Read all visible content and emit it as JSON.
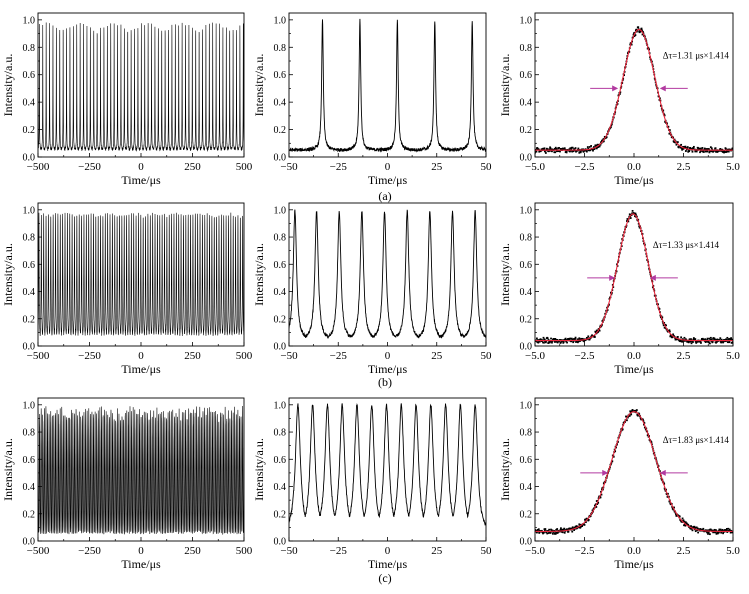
{
  "figure_labels": [
    "(a)",
    "(b)",
    "(c)"
  ],
  "chart_data": [
    {
      "id": "a1",
      "type": "line",
      "row": "(a)",
      "style": "train",
      "period": 16.5,
      "width": 0.7,
      "base": 0.05,
      "peak": 0.97,
      "xlim": [
        -500,
        500
      ],
      "ylim": [
        0,
        1.05
      ],
      "xticks": [
        -500,
        -250,
        0,
        250,
        500
      ],
      "xticklabels": [
        "−500",
        "−250",
        "0",
        "250",
        "500"
      ],
      "yticks": [
        0,
        0.2,
        0.4,
        0.6,
        0.8,
        1.0
      ],
      "yticklabels": [
        "0.0",
        "0.2",
        "0.4",
        "0.6",
        "0.8",
        "1.0"
      ],
      "xlabel": "Time/μs",
      "ylabel": "Intensity/a.u.",
      "colors": {
        "line": "#000000"
      }
    },
    {
      "id": "a2",
      "type": "line",
      "row": "(a)",
      "style": "pulses",
      "x": [
        -33,
        -14,
        5,
        24,
        43
      ],
      "width": 0.5,
      "base": 0.05,
      "peak": 1.0,
      "xlim": [
        -50,
        50
      ],
      "ylim": [
        0,
        1.05
      ],
      "xticks": [
        -50,
        -25,
        0,
        25,
        50
      ],
      "xticklabels": [
        "−50",
        "−25",
        "0",
        "25",
        "50"
      ],
      "yticks": [
        0,
        0.2,
        0.4,
        0.6,
        0.8,
        1.0
      ],
      "yticklabels": [
        "0.0",
        "0.2",
        "0.4",
        "0.6",
        "0.8",
        "1.0"
      ],
      "xlabel": "Time/μs",
      "ylabel": "Intensity/a.u.",
      "colors": {
        "line": "#000000"
      }
    },
    {
      "id": "a3",
      "type": "scatter",
      "row": "(a)",
      "style": "gauss",
      "center": 0.25,
      "sigma": 0.8,
      "base": 0.05,
      "peak": 0.93,
      "xlim": [
        -5,
        5
      ],
      "ylim": [
        0,
        1.05
      ],
      "xticks": [
        -5,
        -2.5,
        0,
        2.5,
        5
      ],
      "xticklabels": [
        "−5.0",
        "−2.5",
        "0.0",
        "2.5",
        "5.0"
      ],
      "yticks": [
        0,
        0.2,
        0.4,
        0.6,
        0.8,
        1.0
      ],
      "yticklabels": [
        "0.0",
        "0.2",
        "0.4",
        "0.6",
        "0.8",
        "1.0"
      ],
      "xlabel": "Time/μs",
      "ylabel": "Intensity/a.u.",
      "annotation": "Δτ=1.31 μs×1.414",
      "fwhm_x": [
        -0.8,
        1.3
      ],
      "arrow_y": 0.5,
      "colors": {
        "data": "#000000",
        "fit": "#e8253b",
        "arrow": "#b23aa0"
      }
    },
    {
      "id": "b1",
      "type": "line",
      "row": "(b)",
      "style": "train",
      "period": 11.5,
      "width": 1.3,
      "base": 0.04,
      "peak": 0.97,
      "xlim": [
        -500,
        500
      ],
      "ylim": [
        0,
        1.05
      ],
      "xticks": [
        -500,
        -250,
        0,
        250,
        500
      ],
      "xticklabels": [
        "−500",
        "−250",
        "0",
        "250",
        "500"
      ],
      "yticks": [
        0,
        0.2,
        0.4,
        0.6,
        0.8,
        1.0
      ],
      "yticklabels": [
        "0.0",
        "0.2",
        "0.4",
        "0.6",
        "0.8",
        "1.0"
      ],
      "xlabel": "Time/μs",
      "ylabel": "Intensity/a.u.",
      "colors": {
        "line": "#000000"
      }
    },
    {
      "id": "b2",
      "type": "line",
      "row": "(b)",
      "style": "pulses",
      "x": [
        -47,
        -36,
        -24.5,
        -13,
        -1.5,
        10,
        21.5,
        33,
        44.5
      ],
      "width": 1.0,
      "base": 0.04,
      "peak": 0.99,
      "xlim": [
        -50,
        50
      ],
      "ylim": [
        0,
        1.05
      ],
      "xticks": [
        -50,
        -25,
        0,
        25,
        50
      ],
      "xticklabels": [
        "−50",
        "−25",
        "0",
        "25",
        "50"
      ],
      "yticks": [
        0,
        0.2,
        0.4,
        0.6,
        0.8,
        1.0
      ],
      "yticklabels": [
        "0.0",
        "0.2",
        "0.4",
        "0.6",
        "0.8",
        "1.0"
      ],
      "xlabel": "Time/μs",
      "ylabel": "Intensity/a.u.",
      "colors": {
        "line": "#000000"
      }
    },
    {
      "id": "b3",
      "type": "scatter",
      "row": "(b)",
      "style": "gauss",
      "center": -0.05,
      "sigma": 0.78,
      "base": 0.04,
      "peak": 0.97,
      "xlim": [
        -5,
        5
      ],
      "ylim": [
        0,
        1.05
      ],
      "xticks": [
        -5,
        -2.5,
        0,
        2.5,
        5
      ],
      "xticklabels": [
        "−5.0",
        "−2.5",
        "0.0",
        "2.5",
        "5.0"
      ],
      "yticks": [
        0,
        0.2,
        0.4,
        0.6,
        0.8,
        1.0
      ],
      "yticklabels": [
        "0.0",
        "0.2",
        "0.4",
        "0.6",
        "0.8",
        "1.0"
      ],
      "xlabel": "Time/μs",
      "ylabel": "Intensity/a.u.",
      "annotation": "Δτ=1.33 μs×1.414",
      "fwhm_x": [
        -0.95,
        0.8
      ],
      "arrow_y": 0.5,
      "colors": {
        "data": "#000000",
        "fit": "#e8253b",
        "arrow": "#b23aa0"
      }
    },
    {
      "id": "c1",
      "type": "line",
      "row": "(c)",
      "style": "dense",
      "period": 7.7,
      "width": 2.0,
      "base": 0.05,
      "peak": 0.97,
      "xlim": [
        -500,
        500
      ],
      "ylim": [
        0,
        1.05
      ],
      "xticks": [
        -500,
        -250,
        0,
        250,
        500
      ],
      "xticklabels": [
        "−500",
        "−250",
        "0",
        "250",
        "500"
      ],
      "yticks": [
        0,
        0.2,
        0.4,
        0.6,
        0.8,
        1.0
      ],
      "yticklabels": [
        "0.0",
        "0.2",
        "0.4",
        "0.6",
        "0.8",
        "1.0"
      ],
      "xlabel": "Time/μs",
      "ylabel": "Intensity/a.u.",
      "colors": {
        "line": "#000000"
      }
    },
    {
      "id": "c2",
      "type": "line",
      "row": "(c)",
      "style": "pulses",
      "x": [
        -45.5,
        -38,
        -30.5,
        -23,
        -15.5,
        -8,
        -0.5,
        7,
        14.5,
        22,
        29.5,
        37,
        44.5
      ],
      "width": 1.5,
      "base": 0.05,
      "peak": 1.0,
      "xlim": [
        -50,
        50
      ],
      "ylim": [
        0,
        1.05
      ],
      "xticks": [
        -50,
        -25,
        0,
        25,
        50
      ],
      "xticklabels": [
        "−50",
        "−25",
        "0",
        "25",
        "50"
      ],
      "yticks": [
        0,
        0.2,
        0.4,
        0.6,
        0.8,
        1.0
      ],
      "yticklabels": [
        "0.0",
        "0.2",
        "0.4",
        "0.6",
        "0.8",
        "1.0"
      ],
      "xlabel": "Time/μs",
      "ylabel": "Intensity/a.u.",
      "colors": {
        "line": "#000000"
      }
    },
    {
      "id": "c3",
      "type": "scatter",
      "row": "(c)",
      "style": "gauss",
      "center": 0.0,
      "sigma": 1.1,
      "base": 0.07,
      "peak": 0.95,
      "xlim": [
        -5,
        5
      ],
      "ylim": [
        0,
        1.05
      ],
      "xticks": [
        -5,
        -2.5,
        0,
        2.5,
        5
      ],
      "xticklabels": [
        "−5.0",
        "−2.5",
        "0.0",
        "2.5",
        "5.0"
      ],
      "yticks": [
        0,
        0.2,
        0.4,
        0.6,
        0.8,
        1.0
      ],
      "yticklabels": [
        "0.0",
        "0.2",
        "0.4",
        "0.6",
        "0.8",
        "1.0"
      ],
      "xlabel": "Time/μs",
      "ylabel": "Intensity/a.u.",
      "annotation": "Δτ=1.83 μs×1.414",
      "fwhm_x": [
        -1.3,
        1.3
      ],
      "arrow_y": 0.5,
      "colors": {
        "data": "#000000",
        "fit": "#e8253b",
        "arrow": "#b23aa0"
      }
    }
  ]
}
